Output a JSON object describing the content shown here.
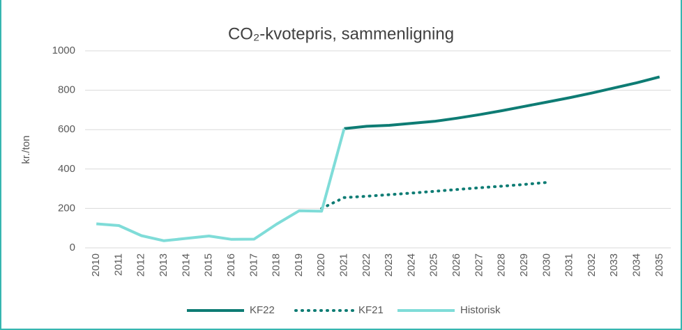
{
  "chart_data": {
    "type": "line",
    "title": "CO₂-kvotepris, sammenligning",
    "y_label": "kr./ton",
    "categories": [
      "2010",
      "2011",
      "2012",
      "2013",
      "2014",
      "2015",
      "2016",
      "2017",
      "2018",
      "2019",
      "2020",
      "2021",
      "2022",
      "2023",
      "2024",
      "2025",
      "2026",
      "2027",
      "2028",
      "2029",
      "2030",
      "2031",
      "2032",
      "2033",
      "2034",
      "2035"
    ],
    "series": [
      {
        "name": "KF22",
        "color": "#0e7c74",
        "dash": "solid",
        "values": [
          null,
          null,
          null,
          null,
          null,
          null,
          null,
          null,
          null,
          null,
          null,
          605,
          617,
          622,
          632,
          642,
          658,
          676,
          696,
          718,
          740,
          762,
          786,
          812,
          838,
          868
        ]
      },
      {
        "name": "KF21",
        "color": "#0e7c74",
        "dash": "dotted",
        "values": [
          null,
          null,
          null,
          null,
          null,
          null,
          null,
          null,
          null,
          null,
          200,
          255,
          262,
          270,
          278,
          287,
          296,
          305,
          313,
          322,
          332,
          null,
          null,
          null,
          null,
          null
        ]
      },
      {
        "name": "Historisk",
        "color": "#7fdcd8",
        "dash": "solid",
        "values": [
          122,
          113,
          62,
          36,
          48,
          60,
          43,
          44,
          120,
          188,
          186,
          605,
          null,
          null,
          null,
          null,
          null,
          null,
          null,
          null,
          null,
          null,
          null,
          null,
          null,
          null
        ]
      }
    ],
    "ylim": [
      0,
      1000
    ],
    "yticks": [
      0,
      200,
      400,
      600,
      800,
      1000
    ],
    "grid": true,
    "legend": "bottom"
  }
}
